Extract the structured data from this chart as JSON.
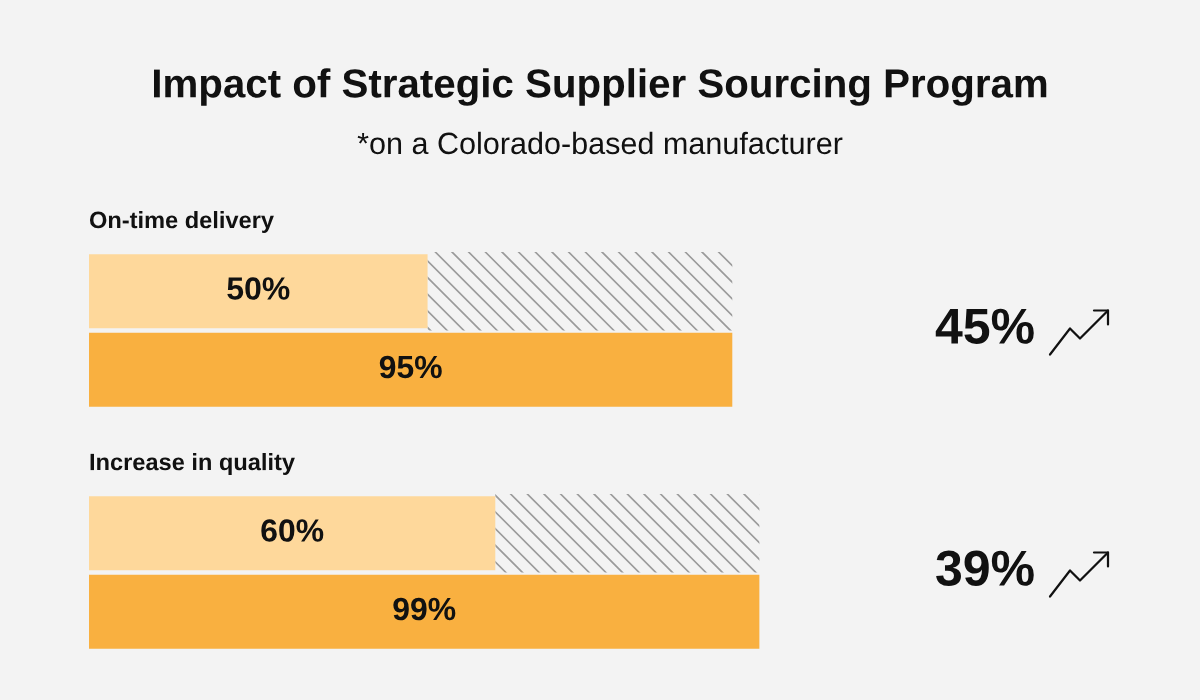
{
  "chart_data": [
    {
      "type": "bar",
      "title": "Impact of Strategic Supplier Sourcing Program",
      "subtitle": "*on a Colorado-based manufacturer",
      "orientation": "horizontal",
      "categories": [
        null
      ],
      "tick_labels": false,
      "grid": false,
      "legend": false,
      "annotations": [
        "On-time delivery",
        "45%"
      ],
      "bands": [
        {
          "axis": "x",
          "from": 50,
          "to": 95,
          "color": "#9a9a9a"
        }
      ],
      "series": [
        {
          "color": "#fed89b",
          "values": [
            50
          ],
          "value_labels": [
            "50%"
          ]
        },
        {
          "color": "#f9b040",
          "values": [
            95
          ],
          "value_labels": [
            "95%"
          ]
        }
      ]
    },
    {
      "type": "bar",
      "title": "Increase in quality",
      "orientation": "horizontal",
      "categories": [
        null
      ],
      "tick_labels": false,
      "grid": false,
      "legend": false,
      "annotations": [
        "39%"
      ],
      "bands": [
        {
          "axis": "x",
          "from": 60,
          "to": 99,
          "color": "#9a9a9a"
        }
      ],
      "series": [
        {
          "color": "#fed89b",
          "values": [
            60
          ],
          "value_labels": [
            "60%"
          ]
        },
        {
          "color": "#f9b040",
          "values": [
            99
          ],
          "value_labels": [
            "99%"
          ]
        }
      ]
    }
  ]
}
